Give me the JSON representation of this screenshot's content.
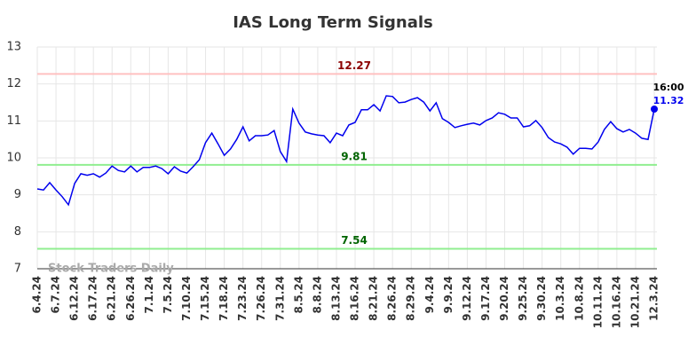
{
  "chart_data": {
    "type": "line",
    "title": "IAS Long Term Signals",
    "watermark": "Stock Traders Daily",
    "color": "#0000ee",
    "ylim": [
      7,
      13
    ],
    "yticks": [
      7,
      8,
      9,
      10,
      11,
      12,
      13
    ],
    "grid": true,
    "last_point_time": "16:00",
    "hlines": [
      {
        "value": 12.27,
        "color": "#ffc0c0",
        "label_color": "#8b0000"
      },
      {
        "value": 9.81,
        "color": "#90ee90",
        "label_color": "#006400"
      },
      {
        "value": 7.54,
        "color": "#90ee90",
        "label_color": "#006400"
      }
    ],
    "categories": [
      "6.4.24",
      null,
      null,
      "6.7.24",
      null,
      null,
      "6.12.24",
      null,
      null,
      "6.17.24",
      null,
      null,
      "6.21.24",
      null,
      null,
      "6.26.24",
      null,
      null,
      "7.1.24",
      null,
      null,
      "7.5.24",
      null,
      null,
      "7.10.24",
      null,
      null,
      "7.15.24",
      null,
      null,
      "7.18.24",
      null,
      null,
      "7.23.24",
      null,
      null,
      "7.26.24",
      null,
      null,
      "7.31.24",
      null,
      null,
      "8.5.24",
      null,
      null,
      "8.8.24",
      null,
      null,
      "8.13.24",
      null,
      null,
      "8.16.24",
      null,
      null,
      "8.21.24",
      null,
      null,
      "8.26.24",
      null,
      null,
      "8.29.24",
      null,
      null,
      "9.4.24",
      null,
      null,
      "9.9.24",
      null,
      null,
      "9.12.24",
      null,
      null,
      "9.17.24",
      null,
      null,
      "9.20.24",
      null,
      null,
      "9.25.24",
      null,
      null,
      "9.30.24",
      null,
      null,
      "10.3.24",
      null,
      null,
      "10.8.24",
      null,
      null,
      "10.11.24",
      null,
      null,
      "10.16.24",
      null,
      null,
      "10.21.24",
      null,
      null,
      "12.3.24"
    ],
    "values": [
      9.16,
      9.13,
      9.33,
      9.13,
      8.95,
      8.73,
      9.31,
      9.57,
      9.53,
      9.57,
      9.48,
      9.59,
      9.78,
      9.66,
      9.62,
      9.78,
      9.62,
      9.74,
      9.74,
      9.78,
      9.71,
      9.57,
      9.76,
      9.64,
      9.59,
      9.76,
      9.95,
      10.41,
      10.67,
      10.38,
      10.07,
      10.24,
      10.5,
      10.84,
      10.46,
      10.6,
      10.6,
      10.62,
      10.74,
      10.17,
      9.9,
      11.32,
      10.94,
      10.7,
      10.65,
      10.62,
      10.6,
      10.41,
      10.67,
      10.6,
      10.89,
      10.96,
      11.3,
      11.3,
      11.44,
      11.27,
      11.68,
      11.66,
      11.49,
      11.51,
      11.58,
      11.63,
      11.51,
      11.27,
      11.49,
      11.06,
      10.96,
      10.82,
      10.87,
      10.91,
      10.94,
      10.89,
      11.01,
      11.08,
      11.22,
      11.18,
      11.08,
      11.08,
      10.84,
      10.87,
      11.01,
      10.82,
      10.55,
      10.43,
      10.38,
      10.29,
      10.1,
      10.26,
      10.26,
      10.24,
      10.43,
      10.77,
      10.98,
      10.79,
      10.7,
      10.77,
      10.67,
      10.53,
      10.5,
      11.32
    ]
  }
}
